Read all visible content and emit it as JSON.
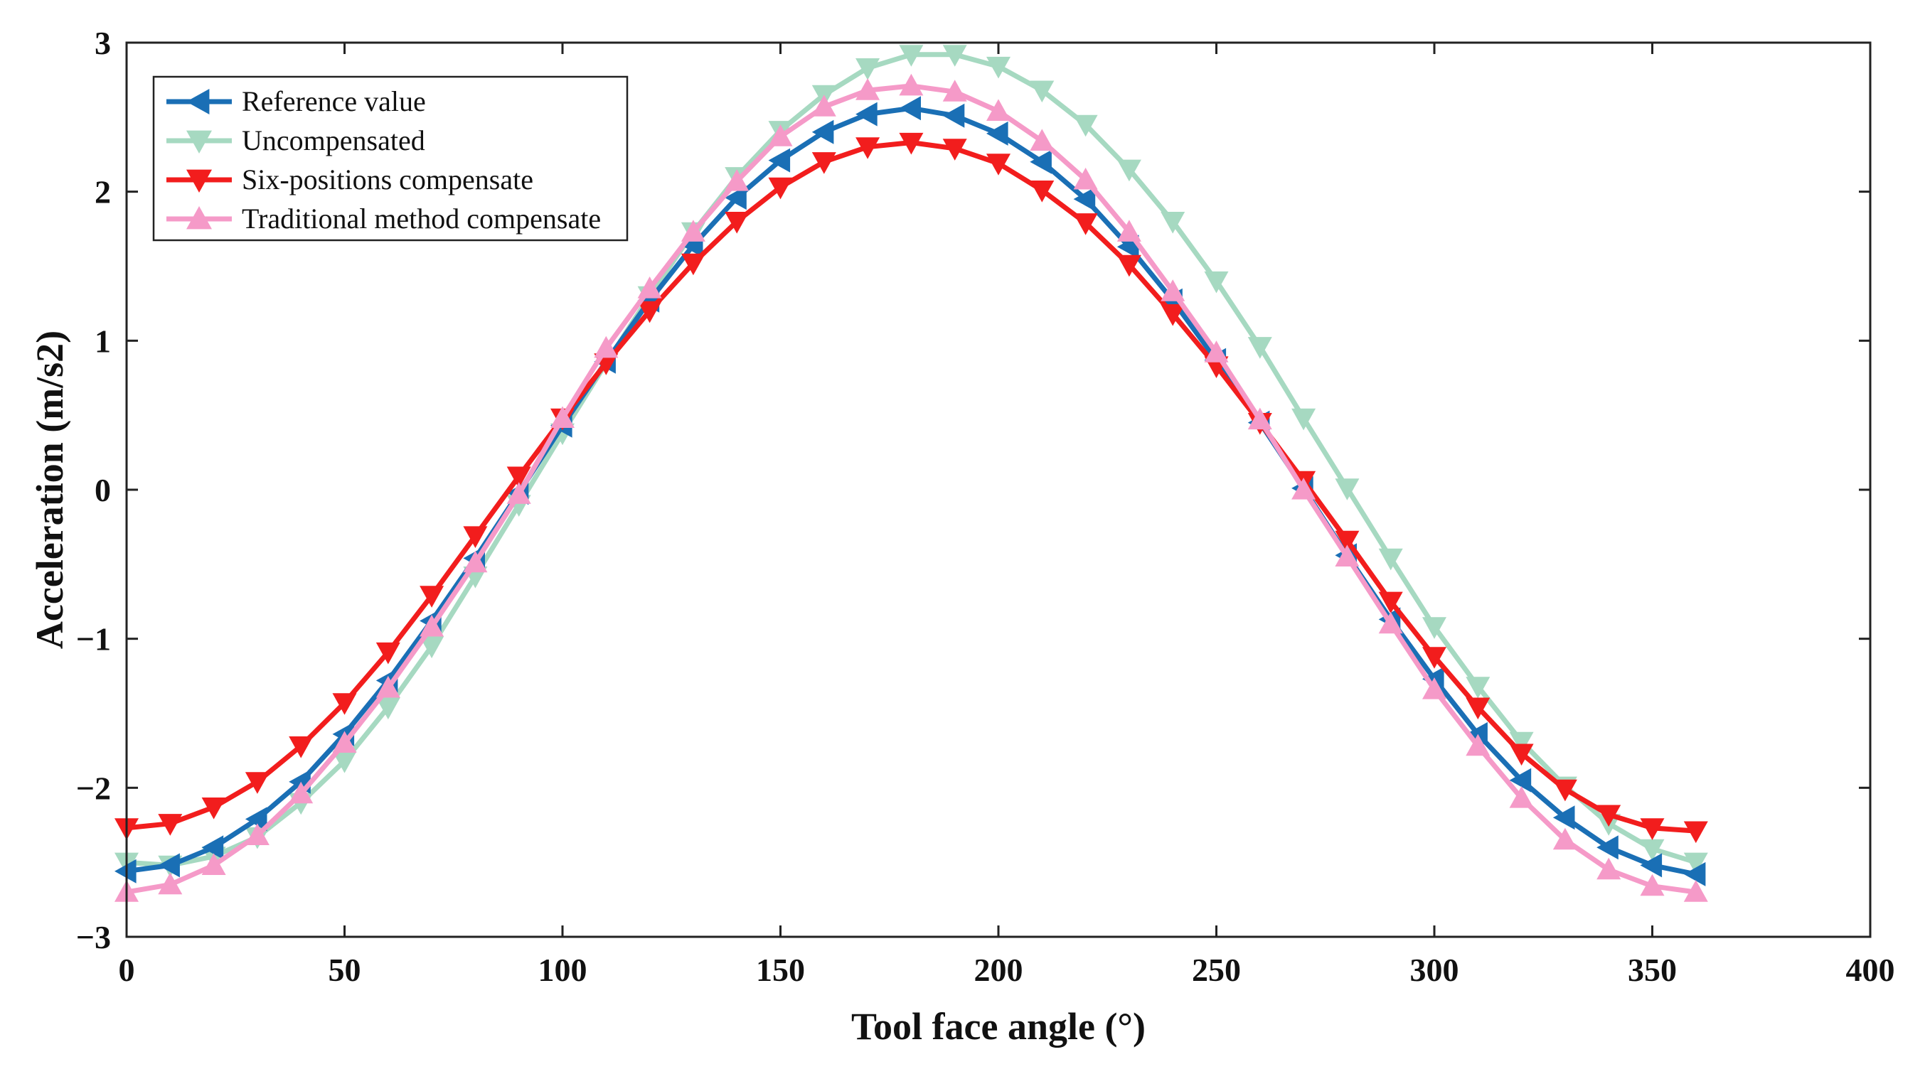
{
  "chart_data": {
    "type": "line",
    "title": "",
    "xlabel": "Tool face angle (°)",
    "ylabel": "Acceleration (m/s2)",
    "xlim": [
      0,
      400
    ],
    "ylim": [
      -3,
      3
    ],
    "xticks": [
      0,
      50,
      100,
      150,
      200,
      250,
      300,
      350,
      400
    ],
    "yticks": [
      -3,
      -2,
      -1,
      0,
      1,
      2,
      3
    ],
    "xtick_labels": [
      "0",
      "50",
      "100",
      "150",
      "200",
      "250",
      "300",
      "350",
      "400"
    ],
    "ytick_labels": [
      "−3",
      "−2",
      "−1",
      "0",
      "1",
      "2",
      "3"
    ],
    "grid": false,
    "legend_position": "top-left",
    "x": [
      0,
      10,
      20,
      30,
      40,
      50,
      60,
      70,
      80,
      90,
      100,
      110,
      120,
      130,
      140,
      150,
      160,
      170,
      180,
      190,
      200,
      210,
      220,
      230,
      240,
      250,
      260,
      270,
      280,
      290,
      300,
      310,
      320,
      330,
      340,
      350,
      360
    ],
    "series": [
      {
        "name": "Reference value",
        "color": "#1a6fb5",
        "marker": "triangle-left",
        "values": [
          -2.56,
          -2.52,
          -2.4,
          -2.21,
          -1.96,
          -1.64,
          -1.28,
          -0.88,
          -0.46,
          -0.02,
          0.43,
          0.86,
          1.27,
          1.64,
          1.96,
          2.21,
          2.4,
          2.52,
          2.56,
          2.51,
          2.39,
          2.2,
          1.95,
          1.63,
          1.27,
          0.87,
          0.45,
          0.01,
          -0.44,
          -0.87,
          -1.27,
          -1.64,
          -1.95,
          -2.2,
          -2.4,
          -2.52,
          -2.58
        ]
      },
      {
        "name": "Uncompensated",
        "color": "#a6d9c1",
        "marker": "triangle-down",
        "values": [
          -2.5,
          -2.52,
          -2.46,
          -2.33,
          -2.1,
          -1.82,
          -1.46,
          -1.05,
          -0.58,
          -0.1,
          0.38,
          0.85,
          1.3,
          1.73,
          2.1,
          2.41,
          2.65,
          2.83,
          2.92,
          2.92,
          2.84,
          2.68,
          2.45,
          2.15,
          1.8,
          1.4,
          0.96,
          0.48,
          0.01,
          -0.46,
          -0.92,
          -1.32,
          -1.69,
          -1.99,
          -2.24,
          -2.41,
          -2.5
        ]
      },
      {
        "name": "Six-positions compensate",
        "color": "#f21d1d",
        "marker": "triangle-down",
        "values": [
          -2.27,
          -2.24,
          -2.13,
          -1.96,
          -1.72,
          -1.43,
          -1.09,
          -0.71,
          -0.31,
          0.09,
          0.48,
          0.85,
          1.2,
          1.52,
          1.8,
          2.03,
          2.2,
          2.3,
          2.33,
          2.29,
          2.19,
          2.01,
          1.79,
          1.51,
          1.18,
          0.83,
          0.45,
          0.06,
          -0.34,
          -0.75,
          -1.12,
          -1.46,
          -1.77,
          -2.01,
          -2.18,
          -2.27,
          -2.29
        ]
      },
      {
        "name": "Traditional method compensate",
        "color": "#f59ac8",
        "marker": "triangle-up",
        "values": [
          -2.7,
          -2.65,
          -2.52,
          -2.32,
          -2.04,
          -1.7,
          -1.33,
          -0.92,
          -0.49,
          -0.03,
          0.48,
          0.95,
          1.35,
          1.73,
          2.07,
          2.37,
          2.57,
          2.68,
          2.71,
          2.67,
          2.54,
          2.34,
          2.08,
          1.73,
          1.33,
          0.92,
          0.47,
          0.0,
          -0.45,
          -0.9,
          -1.34,
          -1.72,
          -2.07,
          -2.35,
          -2.55,
          -2.66,
          -2.7
        ]
      }
    ]
  }
}
